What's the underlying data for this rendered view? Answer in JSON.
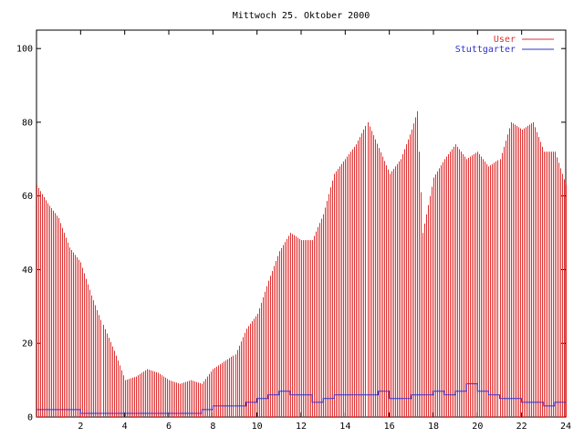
{
  "chart_data": {
    "type": "bar",
    "title": "Mittwoch 25. Oktober 2000",
    "xlabel": "",
    "ylabel": "",
    "xlim": [
      0,
      24
    ],
    "ylim": [
      0,
      105
    ],
    "x_ticks": [
      2,
      4,
      6,
      8,
      10,
      12,
      14,
      16,
      18,
      20,
      22,
      24
    ],
    "y_ticks": [
      0,
      20,
      40,
      60,
      80,
      100
    ],
    "legend_position": "top-right",
    "grid": false,
    "series": [
      {
        "name": "User",
        "style": "impulses",
        "color": "#e03030",
        "x": [
          0.0,
          0.5,
          1.0,
          1.5,
          2.0,
          2.5,
          3.0,
          3.5,
          4.0,
          4.5,
          5.0,
          5.5,
          6.0,
          6.5,
          7.0,
          7.5,
          8.0,
          8.5,
          9.0,
          9.5,
          10.0,
          10.5,
          11.0,
          11.5,
          12.0,
          12.5,
          13.0,
          13.5,
          14.0,
          14.5,
          15.0,
          15.5,
          16.0,
          16.5,
          17.0,
          17.25,
          17.5,
          18.0,
          18.5,
          19.0,
          19.5,
          20.0,
          20.5,
          21.0,
          21.5,
          22.0,
          22.5,
          23.0,
          23.5,
          24.0
        ],
        "values": [
          63,
          58,
          54,
          46,
          42,
          33,
          25,
          18,
          10,
          11,
          13,
          12,
          10,
          9,
          10,
          9,
          13,
          15,
          17,
          24,
          28,
          37,
          45,
          50,
          48,
          48,
          55,
          66,
          70,
          74,
          80,
          73,
          66,
          70,
          78,
          83,
          50,
          65,
          70,
          74,
          70,
          72,
          68,
          70,
          80,
          78,
          80,
          72,
          72,
          63
        ]
      },
      {
        "name": "Stuttgarter",
        "style": "line",
        "color": "#3030d0",
        "x": [
          0.0,
          0.5,
          1.0,
          1.5,
          2.0,
          2.5,
          3.0,
          3.5,
          4.0,
          4.5,
          5.0,
          5.5,
          6.0,
          6.5,
          7.0,
          7.5,
          8.0,
          8.5,
          9.0,
          9.5,
          10.0,
          10.5,
          11.0,
          11.5,
          12.0,
          12.5,
          13.0,
          13.5,
          14.0,
          14.5,
          15.0,
          15.5,
          16.0,
          16.5,
          17.0,
          17.5,
          18.0,
          18.5,
          19.0,
          19.5,
          20.0,
          20.5,
          21.0,
          21.5,
          22.0,
          22.5,
          23.0,
          23.5,
          24.0
        ],
        "values": [
          2,
          2,
          2,
          2,
          1,
          1,
          1,
          1,
          1,
          1,
          1,
          1,
          1,
          1,
          1,
          2,
          3,
          3,
          3,
          4,
          5,
          6,
          7,
          6,
          6,
          4,
          5,
          6,
          6,
          6,
          6,
          7,
          5,
          5,
          6,
          6,
          7,
          6,
          7,
          9,
          7,
          6,
          5,
          5,
          4,
          4,
          3,
          4,
          4
        ]
      }
    ]
  }
}
